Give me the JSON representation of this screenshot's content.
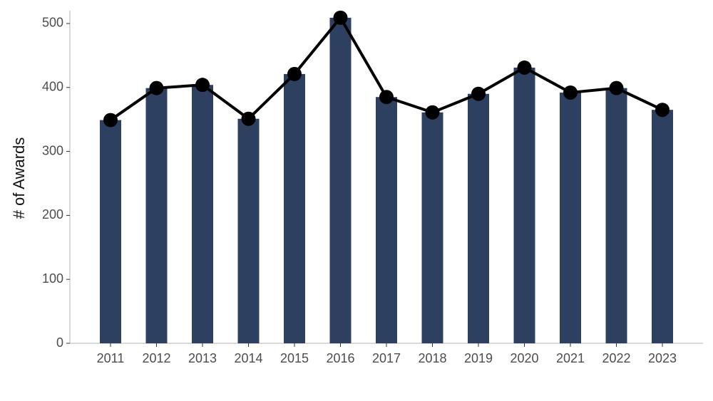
{
  "chart_data": {
    "type": "bar",
    "y_label": "# of Awards",
    "categories": [
      "2011",
      "2012",
      "2013",
      "2014",
      "2015",
      "2016",
      "2017",
      "2018",
      "2019",
      "2020",
      "2021",
      "2022",
      "2023"
    ],
    "values": [
      349,
      399,
      404,
      351,
      421,
      509,
      385,
      361,
      390,
      431,
      392,
      399,
      365
    ],
    "bar_color": "#2e4060",
    "line_color": "#000000",
    "ylim": [
      0,
      520
    ],
    "yticks": [
      0,
      100,
      200,
      300,
      400,
      500
    ],
    "grid": false
  }
}
